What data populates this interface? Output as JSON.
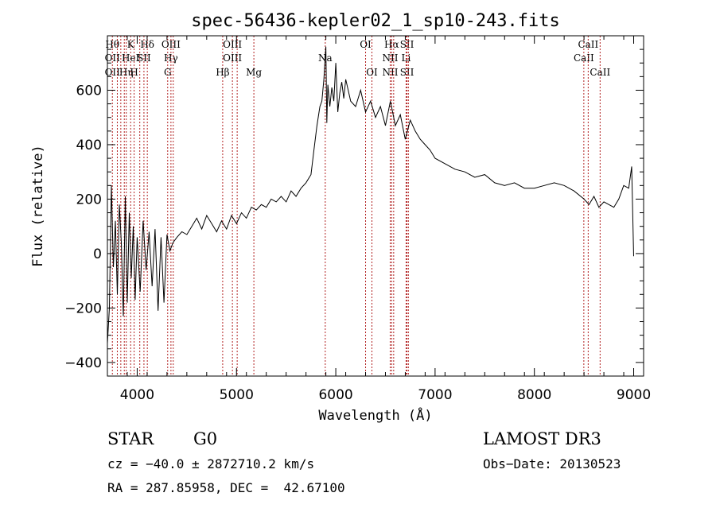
{
  "chart_data": {
    "type": "line",
    "title": "spec-56436-kepler02_1_sp10-243.fits",
    "xlabel": "Wavelength (Å)",
    "ylabel": "Flux (relative)",
    "xlim": [
      3700,
      9100
    ],
    "ylim": [
      -450,
      800
    ],
    "xticks": [
      4000,
      5000,
      6000,
      7000,
      8000,
      9000
    ],
    "xtick_labels": [
      "4000",
      "5000",
      "6000",
      "7000",
      "8000",
      "9000"
    ],
    "yticks": [
      -400,
      -200,
      0,
      200,
      400,
      600
    ],
    "ytick_labels": [
      "−400",
      "−200",
      "0",
      "200",
      "400",
      "600"
    ],
    "series": [
      {
        "x": [
          3700,
          3720,
          3740,
          3760,
          3780,
          3800,
          3820,
          3840,
          3860,
          3880,
          3900,
          3920,
          3940,
          3960,
          3980,
          4000,
          4030,
          4060,
          4090,
          4120,
          4150,
          4180,
          4210,
          4240,
          4270,
          4300,
          4330,
          4360,
          4400,
          4450,
          4500,
          4550,
          4600,
          4650,
          4700,
          4750,
          4800,
          4850,
          4900,
          4950,
          5000,
          5050,
          5100,
          5150,
          5200,
          5250,
          5300,
          5350,
          5400,
          5450,
          5500,
          5550,
          5600,
          5650,
          5700,
          5750,
          5780,
          5810,
          5840,
          5860,
          5880,
          5900,
          5910,
          5920,
          5940,
          5960,
          5980,
          6000,
          6020,
          6040,
          6060,
          6080,
          6100,
          6150,
          6200,
          6250,
          6300,
          6350,
          6400,
          6450,
          6500,
          6550,
          6600,
          6650,
          6700,
          6750,
          6800,
          6850,
          6900,
          6950,
          7000,
          7100,
          7200,
          7300,
          7400,
          7500,
          7600,
          7700,
          7800,
          7900,
          8000,
          8100,
          8200,
          8300,
          8400,
          8500,
          8550,
          8600,
          8650,
          8700,
          8750,
          8800,
          8850,
          8900,
          8950,
          8980,
          9000
        ],
        "y": [
          -330,
          -200,
          250,
          -50,
          120,
          -150,
          180,
          40,
          -230,
          210,
          -180,
          150,
          -90,
          100,
          -170,
          60,
          -140,
          120,
          -60,
          80,
          -120,
          90,
          -210,
          60,
          -180,
          70,
          10,
          40,
          60,
          80,
          70,
          100,
          130,
          90,
          140,
          110,
          80,
          120,
          90,
          140,
          110,
          150,
          130,
          170,
          160,
          180,
          170,
          200,
          190,
          210,
          190,
          230,
          210,
          240,
          260,
          290,
          380,
          470,
          540,
          560,
          640,
          760,
          480,
          620,
          540,
          610,
          560,
          700,
          520,
          590,
          630,
          570,
          640,
          560,
          540,
          600,
          520,
          560,
          500,
          540,
          470,
          560,
          470,
          510,
          420,
          490,
          450,
          420,
          400,
          380,
          350,
          330,
          310,
          300,
          280,
          290,
          260,
          250,
          260,
          240,
          240,
          250,
          260,
          250,
          230,
          200,
          180,
          210,
          170,
          190,
          180,
          170,
          200,
          250,
          240,
          320,
          -10
        ]
      }
    ],
    "line_markers": [
      {
        "x": 3750,
        "labels": [
          "Hθ",
          "OII",
          "OII"
        ]
      },
      {
        "x": 3800,
        "labels": [
          "",
          "",
          ""
        ]
      },
      {
        "x": 3835,
        "labels": [
          "",
          "",
          ""
        ]
      },
      {
        "x": 3870,
        "labels": [
          "",
          "",
          ""
        ]
      },
      {
        "x": 3890,
        "labels": [
          "",
          "",
          "Hη"
        ]
      },
      {
        "x": 3934,
        "labels": [
          "K",
          "HeI",
          ""
        ]
      },
      {
        "x": 3969,
        "labels": [
          "",
          "",
          "H"
        ]
      },
      {
        "x": 4026,
        "labels": [
          "",
          "",
          ""
        ]
      },
      {
        "x": 4068,
        "labels": [
          "",
          "SII",
          ""
        ]
      },
      {
        "x": 4102,
        "labels": [
          "Hδ",
          "",
          ""
        ]
      },
      {
        "x": 4307,
        "labels": [
          "",
          "",
          "G"
        ]
      },
      {
        "x": 4340,
        "labels": [
          "OIII",
          "Hγ",
          ""
        ]
      },
      {
        "x": 4363,
        "labels": [
          "",
          "",
          ""
        ]
      },
      {
        "x": 4861,
        "labels": [
          "",
          "",
          "Hβ"
        ]
      },
      {
        "x": 4959,
        "labels": [
          "OIII",
          "OIII",
          ""
        ]
      },
      {
        "x": 5007,
        "labels": [
          "",
          "",
          ""
        ]
      },
      {
        "x": 5175,
        "labels": [
          "",
          "",
          "Mg"
        ]
      },
      {
        "x": 5894,
        "labels": [
          "",
          "Na",
          ""
        ]
      },
      {
        "x": 6300,
        "labels": [
          "OI",
          "",
          ""
        ]
      },
      {
        "x": 6364,
        "labels": [
          "",
          "",
          "OI"
        ]
      },
      {
        "x": 6548,
        "labels": [
          "",
          "NII",
          "NII"
        ]
      },
      {
        "x": 6563,
        "labels": [
          "Hα",
          "",
          ""
        ]
      },
      {
        "x": 6583,
        "labels": [
          "",
          "",
          ""
        ]
      },
      {
        "x": 6708,
        "labels": [
          "",
          "Li",
          ""
        ]
      },
      {
        "x": 6717,
        "labels": [
          "SII",
          "",
          "SII"
        ]
      },
      {
        "x": 6731,
        "labels": [
          "",
          "",
          ""
        ]
      },
      {
        "x": 8498,
        "labels": [
          "",
          "CaII",
          ""
        ]
      },
      {
        "x": 8542,
        "labels": [
          "CaII",
          "",
          ""
        ]
      },
      {
        "x": 8662,
        "labels": [
          "",
          "",
          "CaII"
        ]
      }
    ]
  },
  "info": {
    "class": "STAR",
    "subclass": "G0",
    "survey": "LAMOST DR3",
    "cz": "cz = −40.0 ± 2872710.2 km/s",
    "obsdate": "Obs−Date: 20130523",
    "radec": "RA = 287.85958, DEC =  42.67100"
  }
}
